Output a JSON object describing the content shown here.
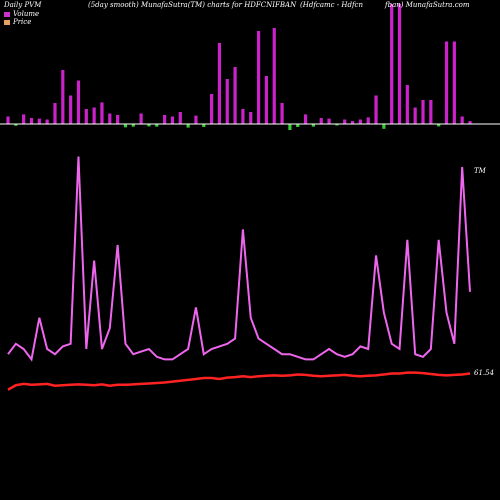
{
  "header": {
    "left": "Daily PVM",
    "center_left": "(5day smooth) MunafaSutra(TM) charts for HDFCNIFBAN",
    "center_right": "(Hdfcamc - Hdfcn",
    "right": "fban) MunafaSutra.com"
  },
  "legend": [
    {
      "label": "Volume",
      "color": "#cc33cc"
    },
    {
      "label": "Price",
      "color": "#e8a060"
    }
  ],
  "colors": {
    "background": "#000000",
    "baseline": "#ffffff",
    "volume_up": "#cc22cc",
    "volume_down": "#33cc33",
    "pvm_line": "#ee66ee",
    "price_line": "#ff2222"
  },
  "labels": {
    "tm": "TM",
    "price_end": "61.54"
  },
  "chart_data": {
    "type": "line",
    "title": "Daily PVM (5day smooth) MunafaSutra(TM) charts for HDFCNIFBAN",
    "x_count": 60,
    "volume_bars": [
      {
        "v": 0.25,
        "up": true
      },
      {
        "v": 0.15,
        "up": false
      },
      {
        "v": 0.32,
        "up": true
      },
      {
        "v": 0.2,
        "up": true
      },
      {
        "v": 0.18,
        "up": true
      },
      {
        "v": 0.15,
        "up": true
      },
      {
        "v": 0.7,
        "up": true
      },
      {
        "v": 1.8,
        "up": true
      },
      {
        "v": 0.95,
        "up": true
      },
      {
        "v": 1.45,
        "up": true
      },
      {
        "v": 0.5,
        "up": true
      },
      {
        "v": 0.55,
        "up": true
      },
      {
        "v": 0.72,
        "up": true
      },
      {
        "v": 0.35,
        "up": true
      },
      {
        "v": 0.3,
        "up": true
      },
      {
        "v": 0.28,
        "up": false
      },
      {
        "v": 0.22,
        "up": false
      },
      {
        "v": 0.35,
        "up": true
      },
      {
        "v": 0.2,
        "up": false
      },
      {
        "v": 0.22,
        "up": false
      },
      {
        "v": 0.3,
        "up": true
      },
      {
        "v": 0.25,
        "up": true
      },
      {
        "v": 0.4,
        "up": true
      },
      {
        "v": 0.3,
        "up": false
      },
      {
        "v": 0.28,
        "up": true
      },
      {
        "v": 0.25,
        "up": false
      },
      {
        "v": 1.0,
        "up": true
      },
      {
        "v": 2.7,
        "up": true
      },
      {
        "v": 1.5,
        "up": true
      },
      {
        "v": 1.9,
        "up": true
      },
      {
        "v": 0.5,
        "up": true
      },
      {
        "v": 0.4,
        "up": true
      },
      {
        "v": 3.1,
        "up": true
      },
      {
        "v": 1.6,
        "up": true
      },
      {
        "v": 3.2,
        "up": true
      },
      {
        "v": 0.7,
        "up": true
      },
      {
        "v": 0.5,
        "up": false
      },
      {
        "v": 0.25,
        "up": false
      },
      {
        "v": 0.32,
        "up": true
      },
      {
        "v": 0.22,
        "up": false
      },
      {
        "v": 0.2,
        "up": true
      },
      {
        "v": 0.18,
        "up": true
      },
      {
        "v": 0.12,
        "up": false
      },
      {
        "v": 0.15,
        "up": true
      },
      {
        "v": 0.1,
        "up": true
      },
      {
        "v": 0.15,
        "up": true
      },
      {
        "v": 0.22,
        "up": true
      },
      {
        "v": 0.95,
        "up": true
      },
      {
        "v": 0.4,
        "up": false
      },
      {
        "v": 4.0,
        "up": true
      },
      {
        "v": 4.0,
        "up": true
      },
      {
        "v": 1.3,
        "up": true
      },
      {
        "v": 0.55,
        "up": true
      },
      {
        "v": 0.8,
        "up": true
      },
      {
        "v": 0.8,
        "up": true
      },
      {
        "v": 0.2,
        "up": false
      },
      {
        "v": 2.75,
        "up": true
      },
      {
        "v": 2.75,
        "up": true
      },
      {
        "v": 0.25,
        "up": true
      },
      {
        "v": 0.1,
        "up": true
      }
    ],
    "pvm_line": [
      0.4,
      0.6,
      0.5,
      0.3,
      1.1,
      0.5,
      0.4,
      0.55,
      0.6,
      4.2,
      0.5,
      2.2,
      0.5,
      0.9,
      2.5,
      0.6,
      0.4,
      0.45,
      0.5,
      0.35,
      0.3,
      0.3,
      0.4,
      0.5,
      1.3,
      0.4,
      0.5,
      0.55,
      0.6,
      0.7,
      2.8,
      1.1,
      0.7,
      0.6,
      0.5,
      0.4,
      0.4,
      0.35,
      0.3,
      0.3,
      0.4,
      0.5,
      0.4,
      0.35,
      0.4,
      0.55,
      0.5,
      2.3,
      1.2,
      0.6,
      0.5,
      2.6,
      0.4,
      0.35,
      0.5,
      2.6,
      1.2,
      0.6,
      4.0,
      1.6
    ],
    "price_line": [
      0.05,
      0.15,
      0.18,
      0.16,
      0.17,
      0.18,
      0.14,
      0.15,
      0.16,
      0.17,
      0.16,
      0.15,
      0.17,
      0.14,
      0.16,
      0.16,
      0.17,
      0.18,
      0.19,
      0.2,
      0.21,
      0.23,
      0.25,
      0.27,
      0.29,
      0.31,
      0.31,
      0.29,
      0.32,
      0.33,
      0.35,
      0.33,
      0.35,
      0.36,
      0.37,
      0.36,
      0.37,
      0.39,
      0.38,
      0.36,
      0.35,
      0.36,
      0.37,
      0.38,
      0.36,
      0.35,
      0.36,
      0.37,
      0.39,
      0.41,
      0.41,
      0.43,
      0.43,
      0.42,
      0.4,
      0.38,
      0.37,
      0.38,
      0.39,
      0.41
    ]
  }
}
